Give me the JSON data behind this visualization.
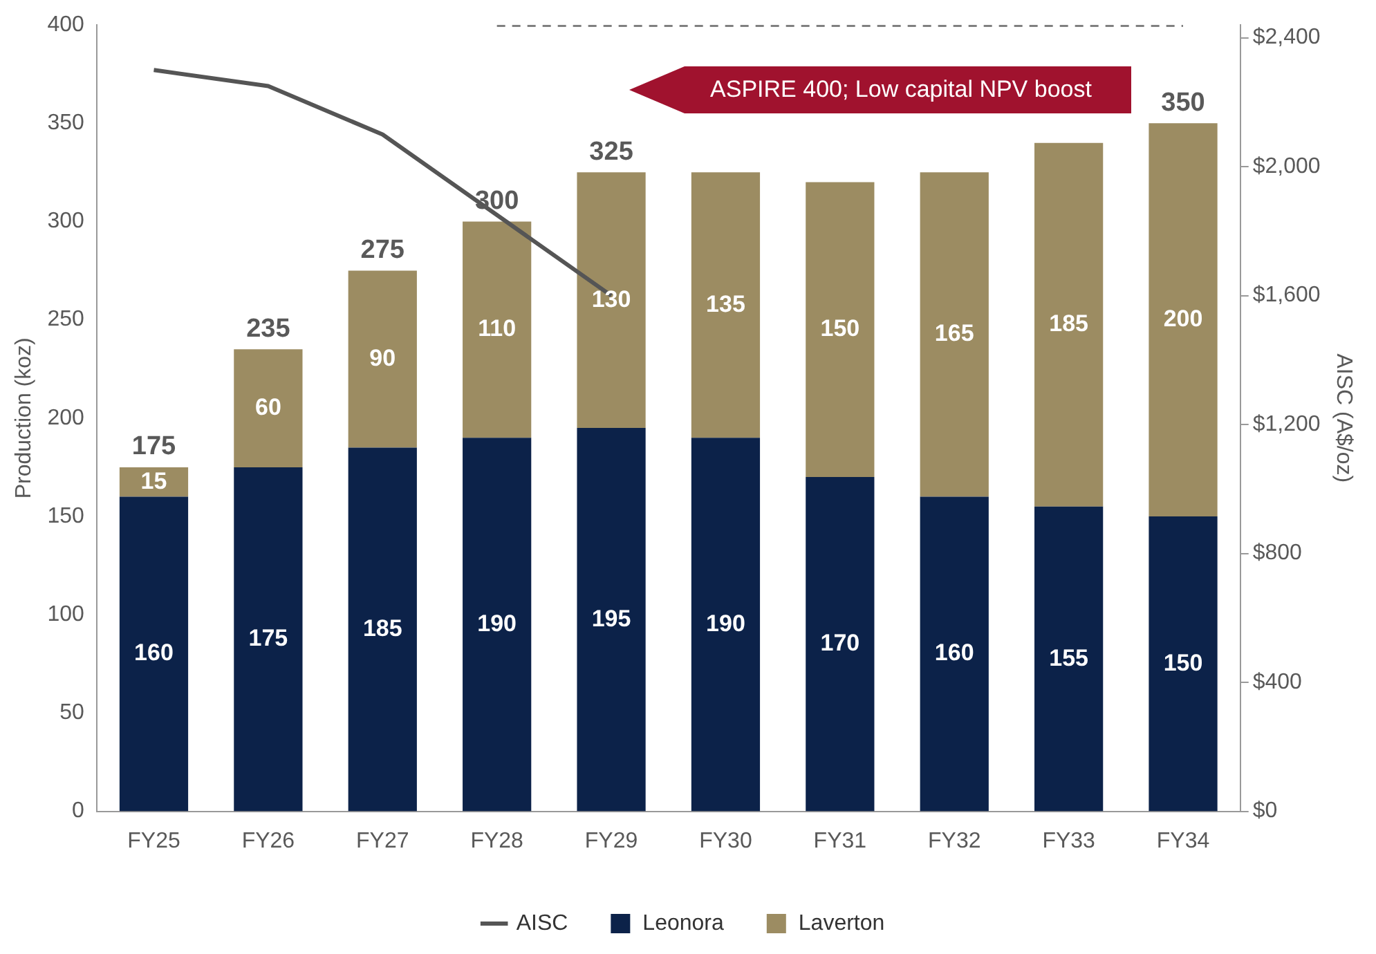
{
  "chart_data": {
    "type": "bar",
    "stacked": true,
    "ylabel": "Production (koz)",
    "y2label": "AISC (A$/oz)",
    "categories": [
      "FY25",
      "FY26",
      "FY27",
      "FY28",
      "FY29",
      "FY30",
      "FY31",
      "FY32",
      "FY33",
      "FY34"
    ],
    "series": [
      {
        "name": "Leonora",
        "color": "#0c2249",
        "values": [
          160,
          175,
          185,
          190,
          195,
          190,
          170,
          160,
          155,
          150
        ],
        "value_labels": [
          "160",
          "175",
          "185",
          "190",
          "195",
          "190",
          "170",
          "160",
          "155",
          "150"
        ]
      },
      {
        "name": "Laverton",
        "color": "#9c8c62",
        "values": [
          15,
          60,
          90,
          110,
          130,
          135,
          150,
          165,
          185,
          200
        ],
        "value_labels": [
          "15",
          "60",
          "90",
          "110",
          "130",
          "135",
          "150",
          "165",
          "185",
          "200"
        ]
      },
      {
        "name": "AISC",
        "type": "line",
        "axis": "y2",
        "color": "#555555",
        "marker": "none",
        "values": [
          2300,
          2250,
          2100,
          1850,
          1600,
          null,
          null,
          null,
          null,
          null
        ]
      },
      {
        "type": "line",
        "color": "#808080",
        "line_style": "dashed",
        "marker": "none",
        "values": [
          null,
          null,
          null,
          400,
          400,
          400,
          400,
          400,
          400,
          400
        ]
      }
    ],
    "totals": [
      "175",
      "235",
      "275",
      "300",
      "325",
      null,
      null,
      null,
      null,
      "350"
    ],
    "ylim": [
      0,
      400
    ],
    "yticks": [
      0,
      50,
      100,
      150,
      200,
      250,
      300,
      350,
      400
    ],
    "y2lim": [
      0,
      2440
    ],
    "y2ticks": [
      {
        "value": 0,
        "label": "$0"
      },
      {
        "value": 400,
        "label": "$400"
      },
      {
        "value": 800,
        "label": "$800"
      },
      {
        "value": 1200,
        "label": "$1,200"
      },
      {
        "value": 1600,
        "label": "$1,600"
      },
      {
        "value": 2000,
        "label": "$2,000"
      },
      {
        "value": 2400,
        "label": "$2,400"
      }
    ],
    "annotations": [
      "ASPIRE 400; Low capital NPV boost"
    ],
    "grid": false,
    "legend": "bottom"
  }
}
